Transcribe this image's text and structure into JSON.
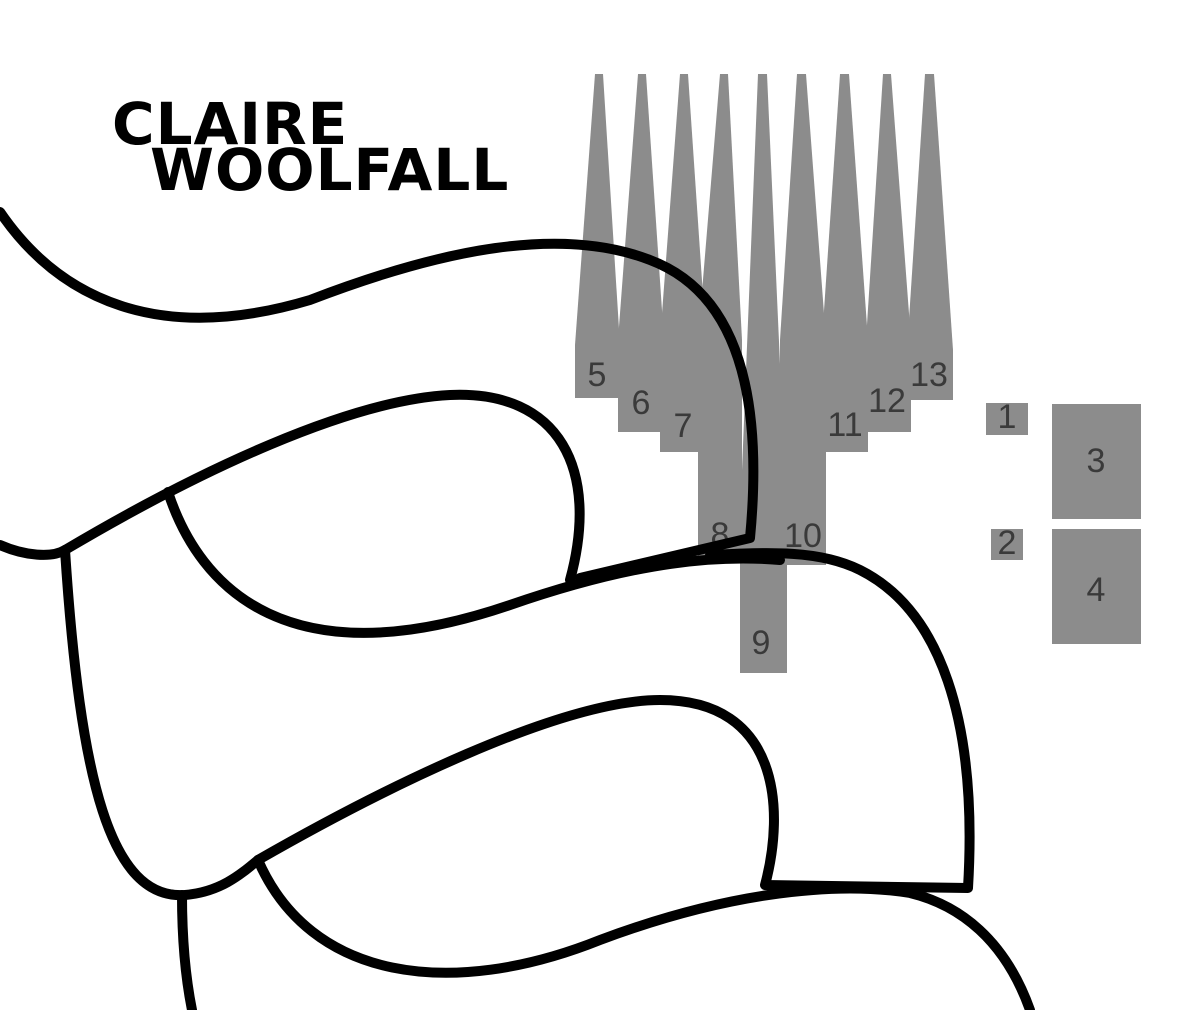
{
  "logo": {
    "line1": "CLAIRE",
    "line2": "WOOLFALL"
  },
  "colors": {
    "outline": "#000000",
    "piece": "#8c8c8c",
    "label": "#3a3a3a",
    "background": "#ffffff"
  },
  "pieces": {
    "p1": "1",
    "p2": "2",
    "p3": "3",
    "p4": "4",
    "p5": "5",
    "p6": "6",
    "p7": "7",
    "p8": "8",
    "p9": "9",
    "p10": "10",
    "p11": "11",
    "p12": "12",
    "p13": "13"
  }
}
